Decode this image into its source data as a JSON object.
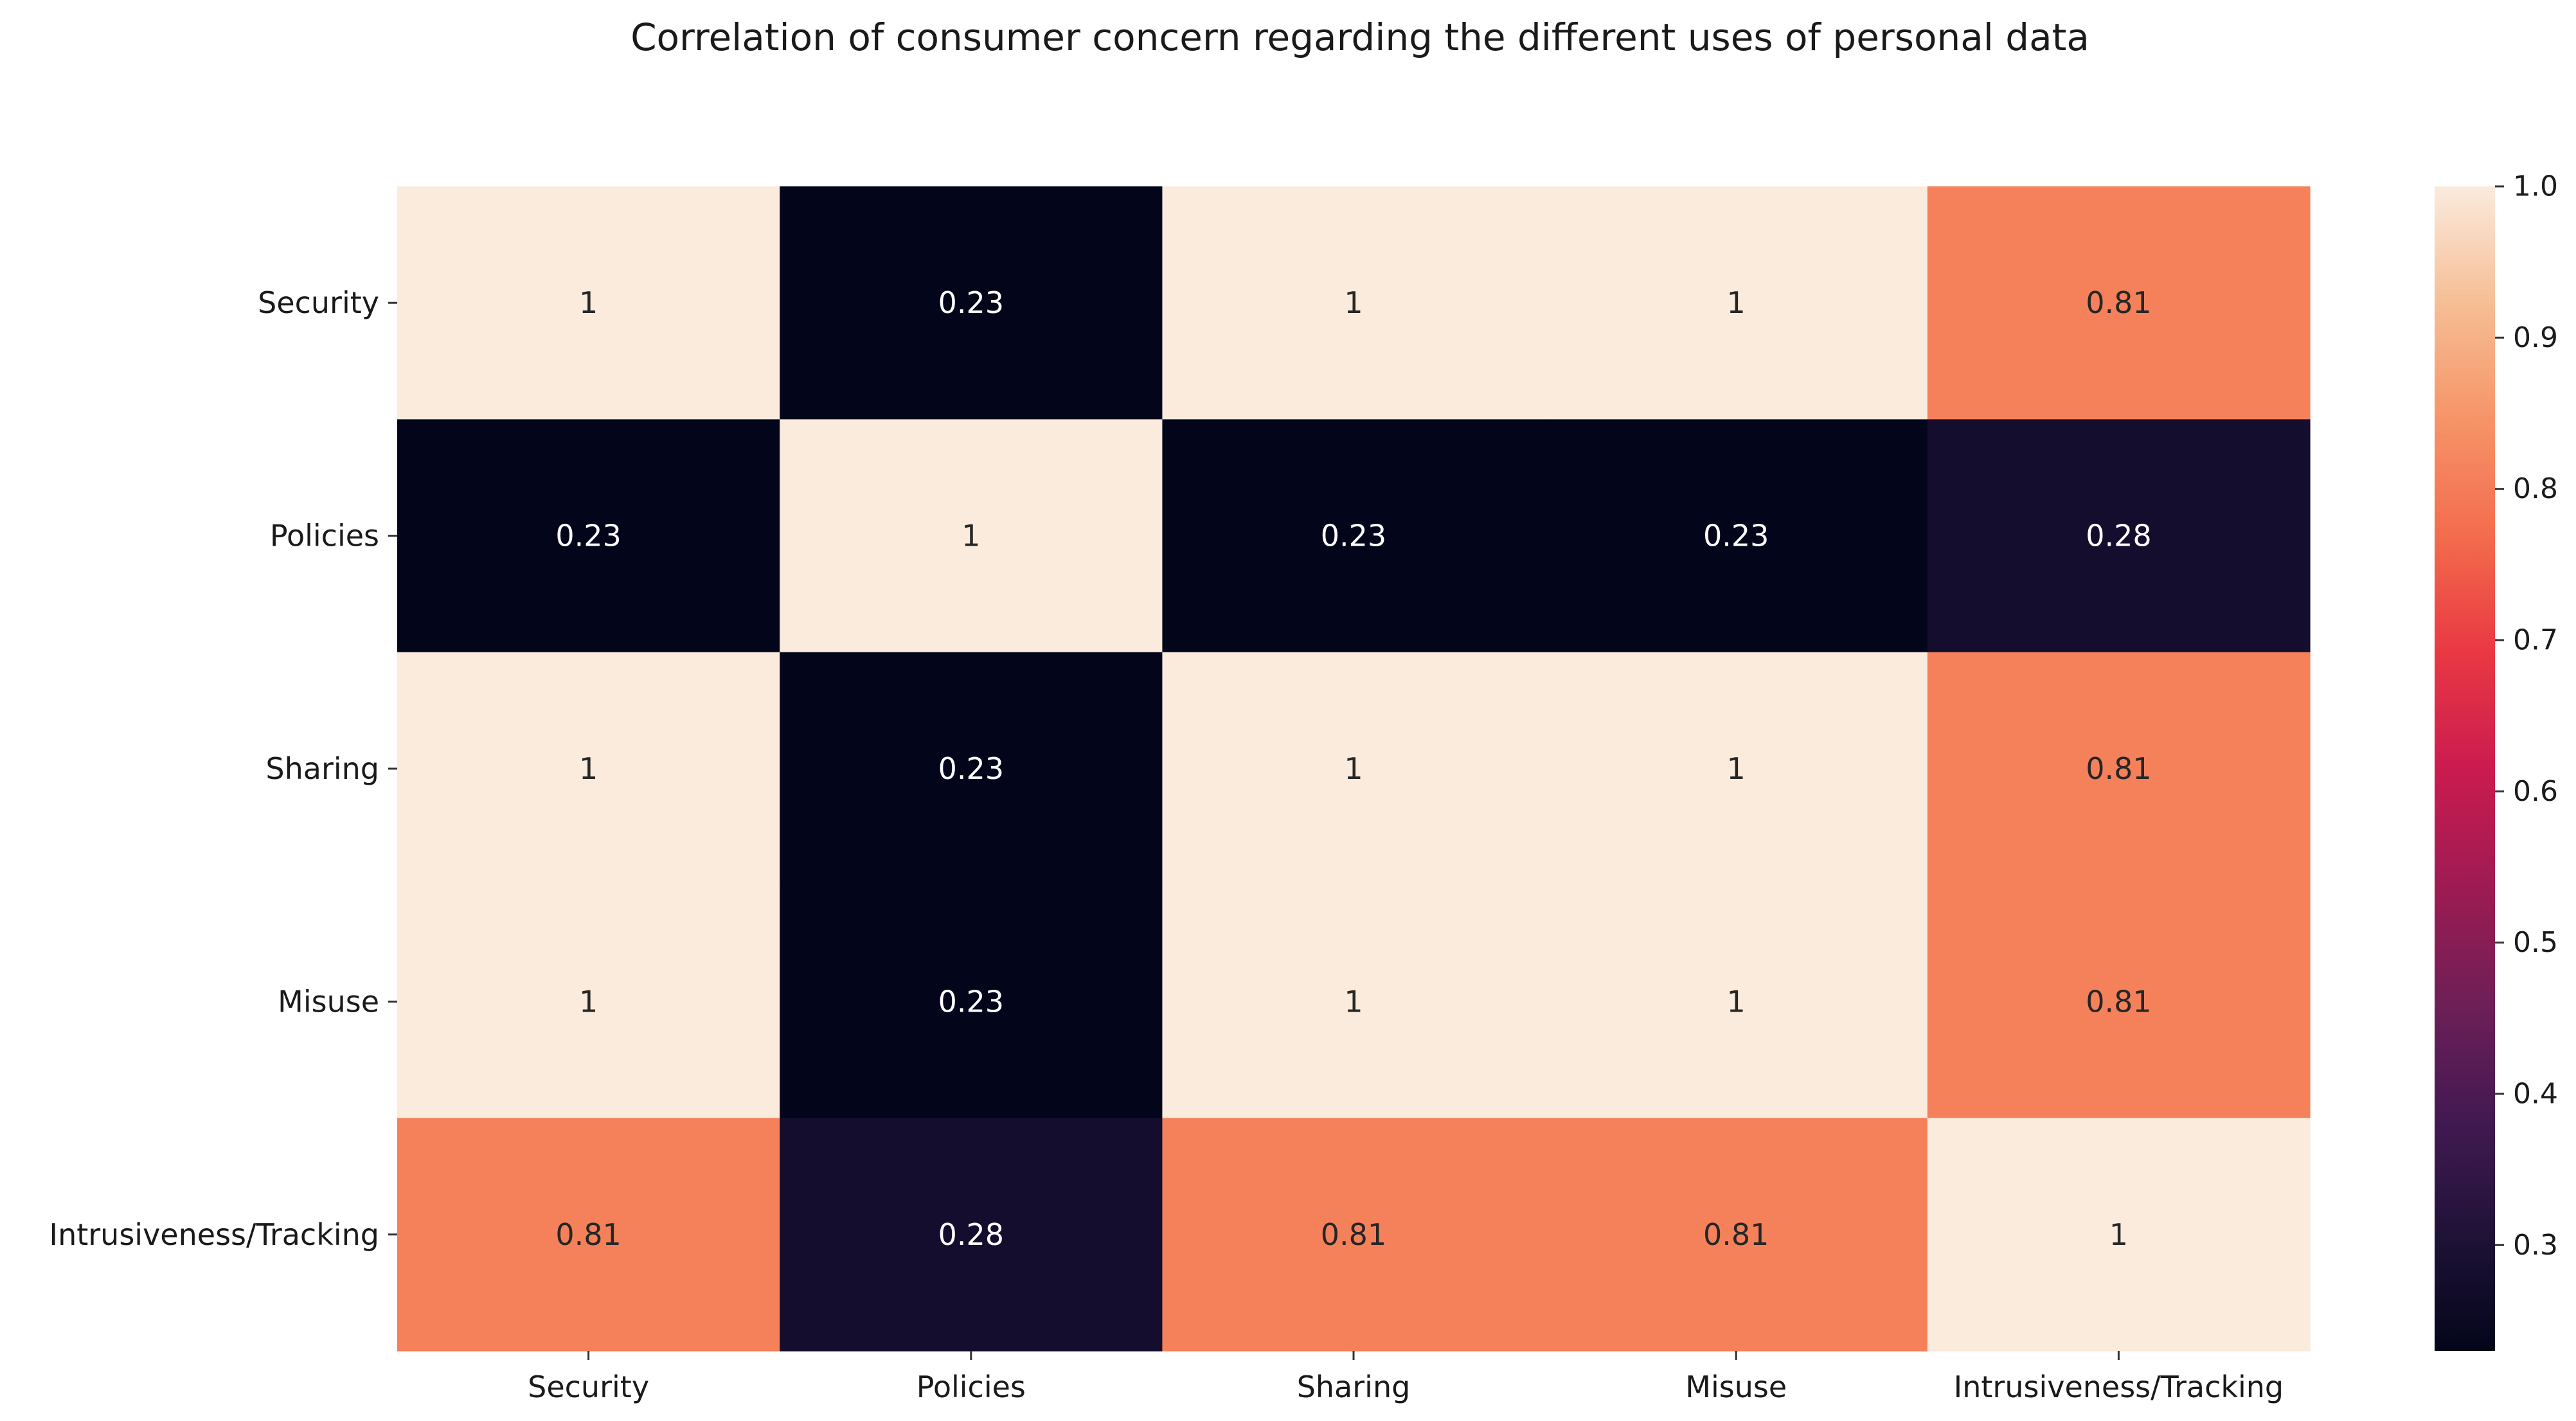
{
  "chart_data": {
    "type": "heatmap",
    "title": "Correlation of consumer concern regarding the different uses of personal data",
    "xlabel": "",
    "ylabel": "",
    "x_categories": [
      "Security",
      "Policies",
      "Sharing",
      "Misuse",
      "Intrusiveness/Tracking"
    ],
    "y_categories": [
      "Security",
      "Policies",
      "Sharing",
      "Misuse",
      "Intrusiveness/Tracking"
    ],
    "values": [
      [
        1,
        0.23,
        1,
        1,
        0.81
      ],
      [
        0.23,
        1,
        0.23,
        0.23,
        0.28
      ],
      [
        1,
        0.23,
        1,
        1,
        0.81
      ],
      [
        1,
        0.23,
        1,
        1,
        0.81
      ],
      [
        0.81,
        0.28,
        0.81,
        0.81,
        1
      ]
    ],
    "annotations": [
      [
        "1",
        "0.23",
        "1",
        "1",
        "0.81"
      ],
      [
        "0.23",
        "1",
        "0.23",
        "0.23",
        "0.28"
      ],
      [
        "1",
        "0.23",
        "1",
        "1",
        "0.81"
      ],
      [
        "1",
        "0.23",
        "1",
        "1",
        "0.81"
      ],
      [
        "0.81",
        "0.28",
        "0.81",
        "0.81",
        "1"
      ]
    ],
    "colorbar": {
      "colormap": "rocket",
      "vmin": 0.23,
      "vmax": 1.0,
      "ticks": [
        "0.3",
        "0.4",
        "0.5",
        "0.6",
        "0.7",
        "0.8",
        "0.9",
        "1.0"
      ]
    },
    "grid": false
  }
}
